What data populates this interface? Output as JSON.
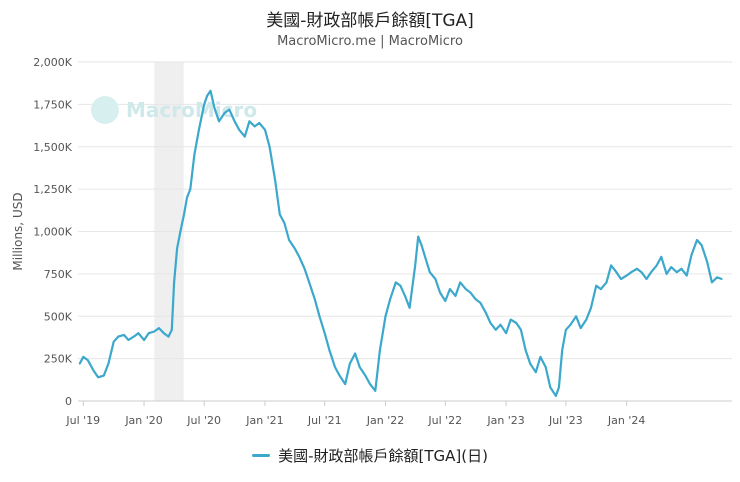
{
  "chart_data": {
    "type": "line",
    "title": "美國-財政部帳戶餘額[TGA]",
    "subtitle": "MacroMicro.me | MacroMicro",
    "watermark": "MacroMicro",
    "ylabel": "Millions, USD",
    "ylim": [
      0,
      2000
    ],
    "y_ticks": [
      {
        "value": 0,
        "label": "0"
      },
      {
        "value": 250,
        "label": "250K"
      },
      {
        "value": 500,
        "label": "500K"
      },
      {
        "value": 750,
        "label": "750K"
      },
      {
        "value": 1000,
        "label": "1,000K"
      },
      {
        "value": 1250,
        "label": "1,250K"
      },
      {
        "value": 1500,
        "label": "1,500K"
      },
      {
        "value": 1750,
        "label": "1,750K"
      },
      {
        "value": 2000,
        "label": "2,000K"
      }
    ],
    "xlim": [
      "2019-06-15",
      "2024-11-15"
    ],
    "x_ticks": [
      {
        "date": "2019-07-01",
        "label": "Jul '19"
      },
      {
        "date": "2020-01-01",
        "label": "Jan '20"
      },
      {
        "date": "2020-07-01",
        "label": "Jul '20"
      },
      {
        "date": "2021-01-01",
        "label": "Jan '21"
      },
      {
        "date": "2021-07-01",
        "label": "Jul '21"
      },
      {
        "date": "2022-01-01",
        "label": "Jan '22"
      },
      {
        "date": "2022-07-01",
        "label": "Jul '22"
      },
      {
        "date": "2023-01-01",
        "label": "Jan '23"
      },
      {
        "date": "2023-07-01",
        "label": "Jul '23"
      },
      {
        "date": "2024-01-01",
        "label": "Jan '24"
      }
    ],
    "shaded_band": {
      "start": "2020-02-01",
      "end": "2020-04-30"
    },
    "grid": true,
    "legend_position": "bottom",
    "series": [
      {
        "name": "美國-財政部帳戶餘額[TGA](日)",
        "color": "#3ba8cc",
        "points": [
          [
            "2019-06-20",
            220
          ],
          [
            "2019-07-01",
            260
          ],
          [
            "2019-07-15",
            240
          ],
          [
            "2019-08-01",
            180
          ],
          [
            "2019-08-15",
            140
          ],
          [
            "2019-09-01",
            150
          ],
          [
            "2019-09-15",
            220
          ],
          [
            "2019-10-01",
            350
          ],
          [
            "2019-10-15",
            380
          ],
          [
            "2019-11-01",
            390
          ],
          [
            "2019-11-15",
            360
          ],
          [
            "2019-12-01",
            380
          ],
          [
            "2019-12-15",
            400
          ],
          [
            "2020-01-01",
            360
          ],
          [
            "2020-01-15",
            400
          ],
          [
            "2020-02-01",
            410
          ],
          [
            "2020-02-15",
            430
          ],
          [
            "2020-03-01",
            400
          ],
          [
            "2020-03-15",
            380
          ],
          [
            "2020-03-25",
            420
          ],
          [
            "2020-04-01",
            700
          ],
          [
            "2020-04-10",
            900
          ],
          [
            "2020-04-20",
            1000
          ],
          [
            "2020-05-01",
            1100
          ],
          [
            "2020-05-10",
            1200
          ],
          [
            "2020-05-20",
            1250
          ],
          [
            "2020-06-01",
            1450
          ],
          [
            "2020-06-15",
            1600
          ],
          [
            "2020-07-01",
            1750
          ],
          [
            "2020-07-10",
            1800
          ],
          [
            "2020-07-20",
            1830
          ],
          [
            "2020-08-01",
            1730
          ],
          [
            "2020-08-15",
            1650
          ],
          [
            "2020-09-01",
            1700
          ],
          [
            "2020-09-15",
            1720
          ],
          [
            "2020-10-01",
            1650
          ],
          [
            "2020-10-15",
            1600
          ],
          [
            "2020-11-01",
            1560
          ],
          [
            "2020-11-15",
            1650
          ],
          [
            "2020-12-01",
            1620
          ],
          [
            "2020-12-15",
            1640
          ],
          [
            "2021-01-01",
            1600
          ],
          [
            "2021-01-15",
            1500
          ],
          [
            "2021-02-01",
            1300
          ],
          [
            "2021-02-15",
            1100
          ],
          [
            "2021-03-01",
            1050
          ],
          [
            "2021-03-15",
            950
          ],
          [
            "2021-04-01",
            900
          ],
          [
            "2021-04-15",
            850
          ],
          [
            "2021-05-01",
            780
          ],
          [
            "2021-05-15",
            700
          ],
          [
            "2021-06-01",
            600
          ],
          [
            "2021-06-15",
            500
          ],
          [
            "2021-07-01",
            400
          ],
          [
            "2021-07-15",
            300
          ],
          [
            "2021-08-01",
            200
          ],
          [
            "2021-08-15",
            150
          ],
          [
            "2021-09-01",
            100
          ],
          [
            "2021-09-15",
            220
          ],
          [
            "2021-10-01",
            280
          ],
          [
            "2021-10-15",
            200
          ],
          [
            "2021-11-01",
            150
          ],
          [
            "2021-11-15",
            100
          ],
          [
            "2021-12-01",
            60
          ],
          [
            "2021-12-15",
            300
          ],
          [
            "2022-01-01",
            500
          ],
          [
            "2022-01-15",
            600
          ],
          [
            "2022-02-01",
            700
          ],
          [
            "2022-02-15",
            680
          ],
          [
            "2022-03-01",
            620
          ],
          [
            "2022-03-15",
            550
          ],
          [
            "2022-04-01",
            800
          ],
          [
            "2022-04-10",
            970
          ],
          [
            "2022-04-20",
            920
          ],
          [
            "2022-05-01",
            850
          ],
          [
            "2022-05-15",
            760
          ],
          [
            "2022-06-01",
            720
          ],
          [
            "2022-06-15",
            640
          ],
          [
            "2022-07-01",
            590
          ],
          [
            "2022-07-15",
            660
          ],
          [
            "2022-08-01",
            620
          ],
          [
            "2022-08-15",
            700
          ],
          [
            "2022-09-01",
            660
          ],
          [
            "2022-09-15",
            640
          ],
          [
            "2022-10-01",
            600
          ],
          [
            "2022-10-15",
            580
          ],
          [
            "2022-11-01",
            520
          ],
          [
            "2022-11-15",
            460
          ],
          [
            "2022-12-01",
            420
          ],
          [
            "2022-12-15",
            450
          ],
          [
            "2023-01-01",
            400
          ],
          [
            "2023-01-15",
            480
          ],
          [
            "2023-02-01",
            460
          ],
          [
            "2023-02-15",
            420
          ],
          [
            "2023-03-01",
            300
          ],
          [
            "2023-03-15",
            220
          ],
          [
            "2023-04-01",
            170
          ],
          [
            "2023-04-15",
            260
          ],
          [
            "2023-05-01",
            200
          ],
          [
            "2023-05-15",
            80
          ],
          [
            "2023-06-01",
            30
          ],
          [
            "2023-06-10",
            80
          ],
          [
            "2023-06-20",
            300
          ],
          [
            "2023-07-01",
            420
          ],
          [
            "2023-07-15",
            450
          ],
          [
            "2023-08-01",
            500
          ],
          [
            "2023-08-15",
            430
          ],
          [
            "2023-09-01",
            480
          ],
          [
            "2023-09-15",
            550
          ],
          [
            "2023-10-01",
            680
          ],
          [
            "2023-10-15",
            660
          ],
          [
            "2023-11-01",
            700
          ],
          [
            "2023-11-15",
            800
          ],
          [
            "2023-12-01",
            760
          ],
          [
            "2023-12-15",
            720
          ],
          [
            "2024-01-01",
            740
          ],
          [
            "2024-01-15",
            760
          ],
          [
            "2024-02-01",
            780
          ],
          [
            "2024-02-15",
            760
          ],
          [
            "2024-03-01",
            720
          ],
          [
            "2024-03-15",
            760
          ],
          [
            "2024-04-01",
            800
          ],
          [
            "2024-04-15",
            850
          ],
          [
            "2024-05-01",
            750
          ],
          [
            "2024-05-15",
            790
          ],
          [
            "2024-06-01",
            760
          ],
          [
            "2024-06-15",
            780
          ],
          [
            "2024-07-01",
            740
          ],
          [
            "2024-07-15",
            860
          ],
          [
            "2024-08-01",
            950
          ],
          [
            "2024-08-15",
            920
          ],
          [
            "2024-09-01",
            820
          ],
          [
            "2024-09-15",
            700
          ],
          [
            "2024-10-01",
            730
          ],
          [
            "2024-10-15",
            720
          ]
        ]
      }
    ]
  }
}
